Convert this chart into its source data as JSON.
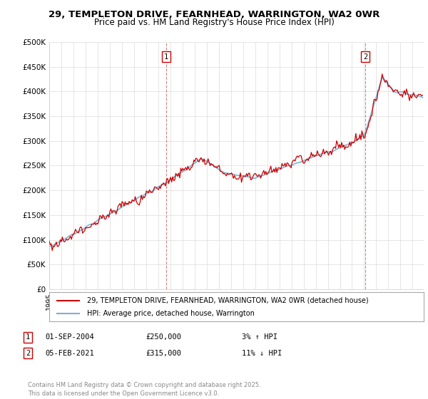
{
  "title_line1": "29, TEMPLETON DRIVE, FEARNHEAD, WARRINGTON, WA2 0WR",
  "title_line2": "Price paid vs. HM Land Registry's House Price Index (HPI)",
  "ylabel_ticks": [
    "£0",
    "£50K",
    "£100K",
    "£150K",
    "£200K",
    "£250K",
    "£300K",
    "£350K",
    "£400K",
    "£450K",
    "£500K"
  ],
  "ytick_values": [
    0,
    50000,
    100000,
    150000,
    200000,
    250000,
    300000,
    350000,
    400000,
    450000,
    500000
  ],
  "ylim": [
    0,
    500000
  ],
  "xlim_start": 1995.0,
  "xlim_end": 2025.92,
  "red_color": "#cc0000",
  "blue_color": "#7ab0d4",
  "marker1_x": 2004.67,
  "marker1_y": 490000,
  "marker2_x": 2021.09,
  "marker2_y": 490000,
  "legend_line1": "29, TEMPLETON DRIVE, FEARNHEAD, WARRINGTON, WA2 0WR (detached house)",
  "legend_line2": "HPI: Average price, detached house, Warrington",
  "footer": "Contains HM Land Registry data © Crown copyright and database right 2025.\nThis data is licensed under the Open Government Licence v3.0.",
  "background_color": "#ffffff",
  "grid_color": "#e0e0e0"
}
